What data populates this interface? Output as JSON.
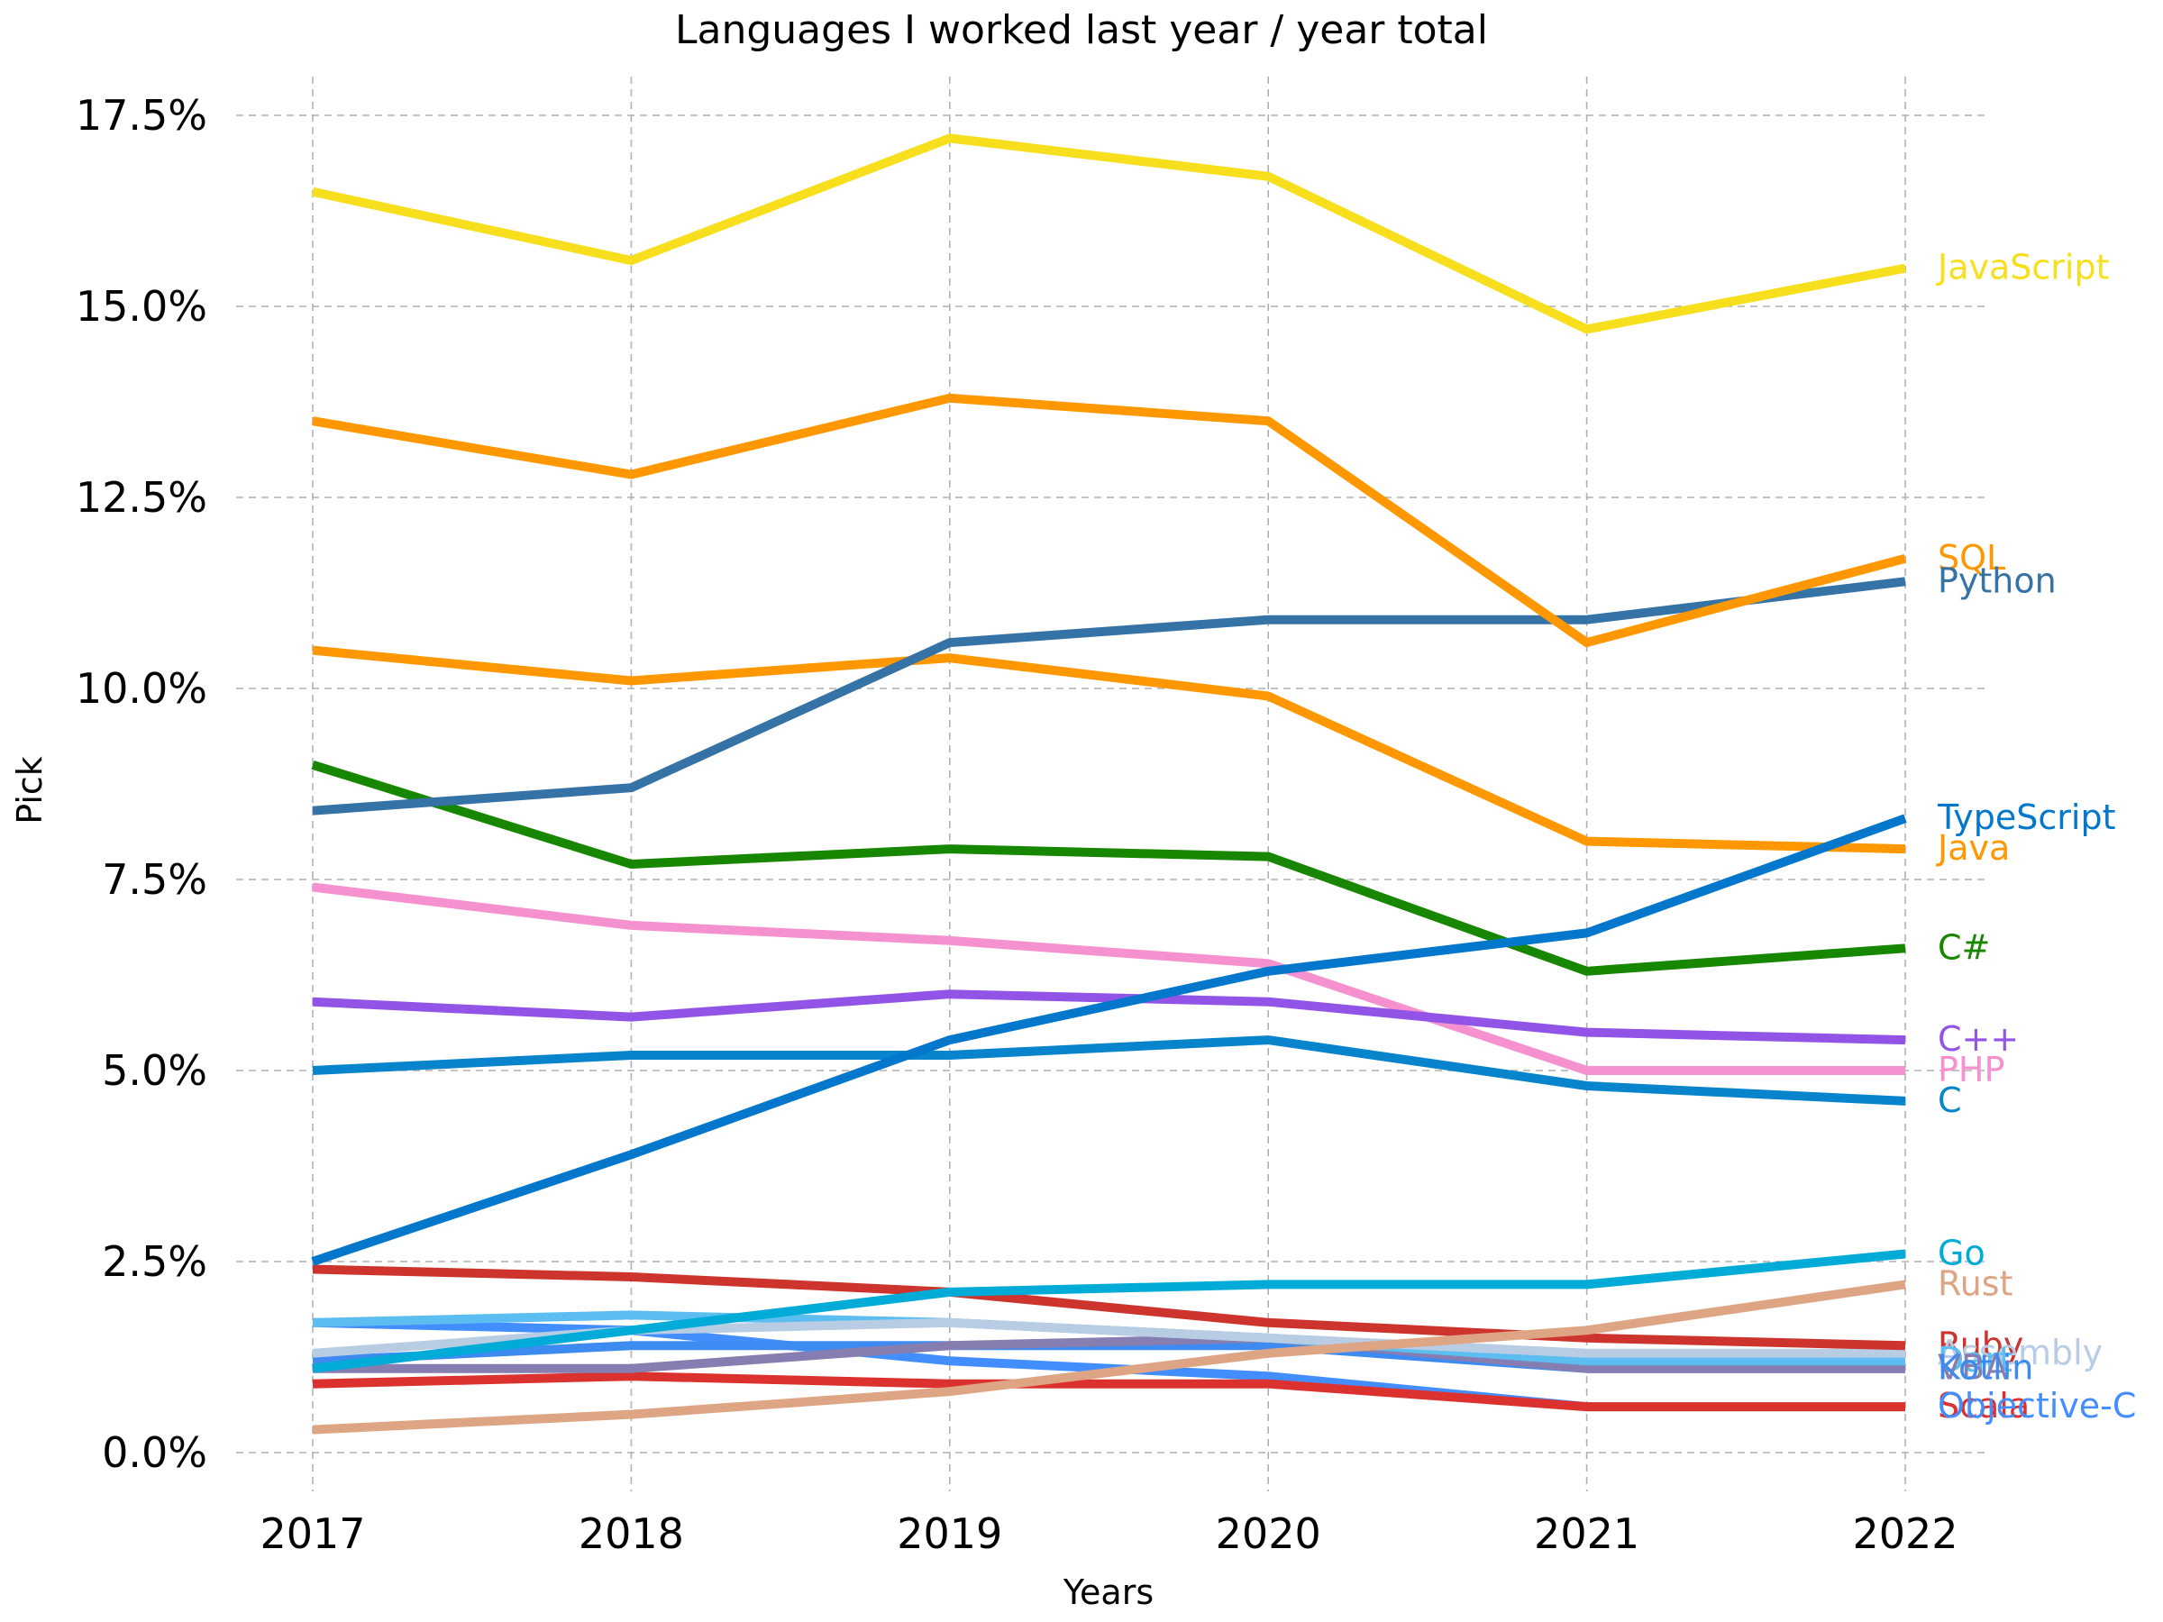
{
  "chart_data": {
    "type": "line",
    "title": "Languages I worked last year / year total",
    "xlabel": "Years",
    "ylabel": "Pick",
    "x": [
      2017,
      2018,
      2019,
      2020,
      2021,
      2022
    ],
    "x_tick_labels": [
      "2017",
      "2018",
      "2019",
      "2020",
      "2021",
      "2022"
    ],
    "y_ticks": [
      0.0,
      2.5,
      5.0,
      7.5,
      10.0,
      12.5,
      15.0,
      17.5
    ],
    "y_tick_labels": [
      "0.0%",
      "2.5%",
      "5.0%",
      "7.5%",
      "10.0%",
      "12.5%",
      "15.0%",
      "17.5%"
    ],
    "ylim": [
      -0.5,
      18.0
    ],
    "xlim": [
      2016.75,
      2022.25
    ],
    "grid": true,
    "legend": "direct labels at right end of each line",
    "series": [
      {
        "name": "JavaScript",
        "color": "#f7df1e",
        "values": [
          16.5,
          15.6,
          17.2,
          16.7,
          14.7,
          15.5
        ]
      },
      {
        "name": "SQL",
        "color": "#ff9800",
        "values": [
          13.5,
          12.8,
          13.8,
          13.5,
          10.6,
          11.7
        ]
      },
      {
        "name": "Python",
        "color": "#3572a5",
        "values": [
          8.4,
          8.7,
          10.6,
          10.9,
          10.9,
          11.4
        ]
      },
      {
        "name": "TypeScript",
        "color": "#0277cc",
        "values": [
          2.5,
          3.9,
          5.4,
          6.3,
          6.8,
          8.3
        ]
      },
      {
        "name": "Java",
        "color": "#ff9800",
        "values": [
          10.5,
          10.1,
          10.4,
          9.9,
          8.0,
          7.9
        ]
      },
      {
        "name": "C#",
        "color": "#178600",
        "values": [
          9.0,
          7.7,
          7.9,
          7.8,
          6.3,
          6.6
        ]
      },
      {
        "name": "C++",
        "color": "#9254e6",
        "values": [
          5.9,
          5.7,
          6.0,
          5.9,
          5.5,
          5.4
        ]
      },
      {
        "name": "PHP",
        "color": "#f691cf",
        "values": [
          7.4,
          6.9,
          6.7,
          6.4,
          5.0,
          5.0
        ]
      },
      {
        "name": "C",
        "color": "#0884cc",
        "values": [
          5.0,
          5.2,
          5.2,
          5.4,
          4.8,
          4.6
        ]
      },
      {
        "name": "Go",
        "color": "#00acd7",
        "values": [
          1.1,
          1.6,
          2.1,
          2.2,
          2.2,
          2.6
        ]
      },
      {
        "name": "Rust",
        "color": "#dea584",
        "values": [
          0.3,
          0.5,
          0.8,
          1.3,
          1.6,
          2.2
        ]
      },
      {
        "name": "Ruby",
        "color": "#cc342d",
        "values": [
          2.4,
          2.3,
          2.1,
          1.7,
          1.5,
          1.4
        ]
      },
      {
        "name": "Assembly",
        "color": "#b8cce4",
        "values": [
          1.3,
          1.6,
          1.7,
          1.5,
          1.3,
          1.3
        ]
      },
      {
        "name": "Dart",
        "color": "#5cbef0",
        "values": [
          1.7,
          1.8,
          1.7,
          1.5,
          1.2,
          1.2
        ]
      },
      {
        "name": "VBA",
        "color": "#867db1",
        "values": [
          1.1,
          1.1,
          1.4,
          1.5,
          1.1,
          1.1
        ]
      },
      {
        "name": "Kotlin",
        "color": "#3d8bf0",
        "values": [
          1.2,
          1.4,
          1.4,
          1.4,
          1.1,
          1.1
        ]
      },
      {
        "name": "Scala",
        "color": "#dc322f",
        "values": [
          0.9,
          1.0,
          0.9,
          0.9,
          0.6,
          0.6
        ]
      },
      {
        "name": "Objective-C",
        "color": "#438eff",
        "values": [
          1.7,
          1.6,
          1.2,
          1.0,
          0.6,
          0.6
        ]
      }
    ]
  }
}
